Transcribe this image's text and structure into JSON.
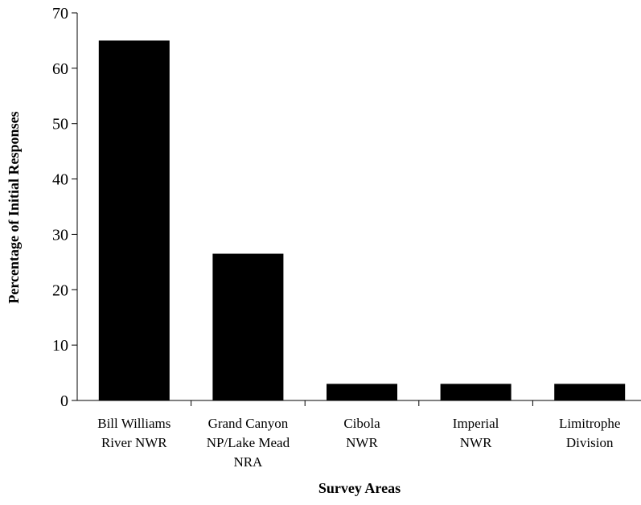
{
  "chart_data": {
    "type": "bar",
    "title": "",
    "xlabel": "Survey Areas",
    "ylabel": "Percentage of Initial Responses",
    "categories": [
      [
        "Bill Williams",
        "River NWR"
      ],
      [
        "Grand Canyon",
        "NP/Lake Mead",
        "NRA"
      ],
      [
        "Cibola",
        "NWR"
      ],
      [
        "Imperial",
        "NWR"
      ],
      [
        "Limitrophe",
        "Division"
      ]
    ],
    "values": [
      65,
      26.5,
      3,
      3,
      3
    ],
    "ylim": [
      0,
      70
    ],
    "yticks": [
      0,
      10,
      20,
      30,
      40,
      50,
      60,
      70
    ],
    "bar_color": "#000000",
    "grid": false,
    "legend": "none"
  }
}
